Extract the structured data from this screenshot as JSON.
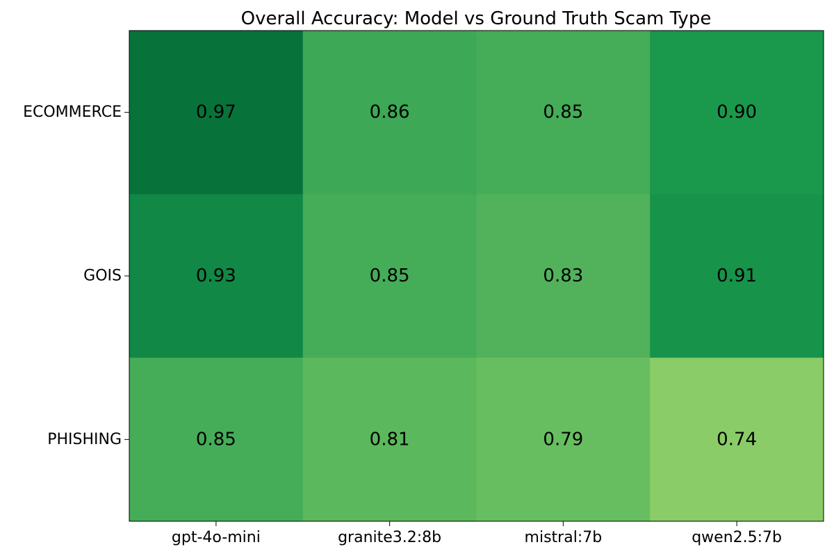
{
  "chart_data": {
    "type": "heatmap",
    "title": "Overall Accuracy: Model vs Ground Truth Scam Type",
    "xlabel": "",
    "ylabel": "",
    "columns": [
      "gpt-4o-mini",
      "granite3.2:8b",
      "mistral:7b",
      "qwen2.5:7b"
    ],
    "rows": [
      "ECOMMERCE",
      "GOIS",
      "PHISHING"
    ],
    "values": [
      [
        0.97,
        0.86,
        0.85,
        0.9
      ],
      [
        0.93,
        0.85,
        0.83,
        0.91
      ],
      [
        0.85,
        0.81,
        0.79,
        0.74
      ]
    ],
    "value_labels": [
      [
        "0.97",
        "0.86",
        "0.85",
        "0.90"
      ],
      [
        "0.93",
        "0.85",
        "0.83",
        "0.91"
      ],
      [
        "0.85",
        "0.81",
        "0.79",
        "0.74"
      ]
    ],
    "colormap": "Greens-Yellow",
    "color_range": [
      0.74,
      0.97
    ],
    "grid": false,
    "legend": "none"
  }
}
